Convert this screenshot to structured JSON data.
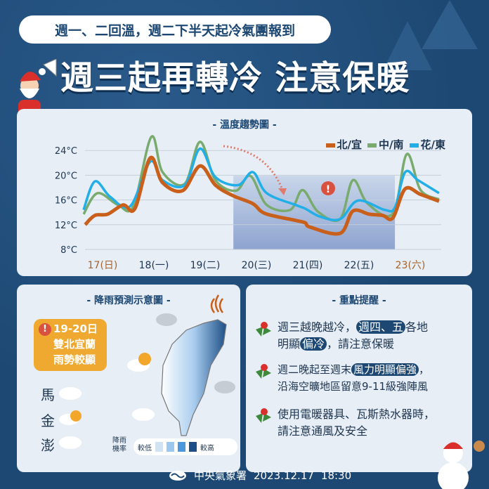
{
  "header": {
    "subtitle": "週一、二回溫，週二下半天起冷氣團報到",
    "title": "週三起再轉冷 注意保暖"
  },
  "chart_data": {
    "type": "line",
    "title": "- 溫度趨勢圖 -",
    "xlabel": "",
    "ylabel": "",
    "yticks": [
      "8°C",
      "12°C",
      "16°C",
      "20°C",
      "24°C"
    ],
    "ylim": [
      8,
      24
    ],
    "categories": [
      "17(日)",
      "18(一)",
      "19(二)",
      "20(三)",
      "21(四)",
      "22(五)",
      "23(六)"
    ],
    "x_unit": "day of month (Dec)",
    "xlim": [
      16.6,
      23.6
    ],
    "highlight_range": [
      19.55,
      22.7
    ],
    "legend_position": "top-right",
    "grid": true,
    "series": [
      {
        "name": "北/宜",
        "color": "#c8601c",
        "points": [
          [
            16.66,
            12
          ],
          [
            16.85,
            13.5
          ],
          [
            17.1,
            13.7
          ],
          [
            17.4,
            15.2
          ],
          [
            17.63,
            14.6
          ],
          [
            17.93,
            22.8
          ],
          [
            18.17,
            18.8
          ],
          [
            18.56,
            17.5
          ],
          [
            18.9,
            21.5
          ],
          [
            19.2,
            18.4
          ],
          [
            19.54,
            16.7
          ],
          [
            19.93,
            15.4
          ],
          [
            20.17,
            13.8
          ],
          [
            20.76,
            12.7
          ],
          [
            20.95,
            12.3
          ],
          [
            21.05,
            11.6
          ],
          [
            21.63,
            10.6
          ],
          [
            21.88,
            14.2
          ],
          [
            22.2,
            13.7
          ],
          [
            22.46,
            13.5
          ],
          [
            22.66,
            13.1
          ],
          [
            22.9,
            17.8
          ],
          [
            23.2,
            16.9
          ],
          [
            23.56,
            15.8
          ]
        ]
      },
      {
        "name": "中/南",
        "color": "#7aab6e",
        "points": [
          [
            16.63,
            13.7
          ],
          [
            16.9,
            17.1
          ],
          [
            17.3,
            15.2
          ],
          [
            17.6,
            15
          ],
          [
            17.95,
            26.2
          ],
          [
            18.17,
            20.5
          ],
          [
            18.6,
            18.6
          ],
          [
            18.9,
            25.4
          ],
          [
            19.2,
            19.2
          ],
          [
            19.6,
            17.5
          ],
          [
            19.88,
            19.9
          ],
          [
            20.2,
            15.2
          ],
          [
            20.66,
            14.4
          ],
          [
            20.9,
            17.6
          ],
          [
            21.2,
            14.1
          ],
          [
            21.63,
            12.9
          ],
          [
            21.88,
            19.2
          ],
          [
            22.17,
            15.4
          ],
          [
            22.66,
            13.8
          ],
          [
            22.93,
            23.4
          ],
          [
            23.2,
            17.6
          ],
          [
            23.56,
            16.1
          ]
        ]
      },
      {
        "name": "花/東",
        "color": "#22aee6",
        "points": [
          [
            16.63,
            14.4
          ],
          [
            16.85,
            19
          ],
          [
            17.15,
            16.5
          ],
          [
            17.54,
            15
          ],
          [
            17.93,
            22.2
          ],
          [
            18.17,
            19.2
          ],
          [
            18.6,
            18.4
          ],
          [
            18.9,
            24.3
          ],
          [
            19.2,
            19.7
          ],
          [
            19.64,
            18.4
          ],
          [
            19.93,
            20.5
          ],
          [
            20.2,
            17.1
          ],
          [
            20.76,
            15.2
          ],
          [
            20.95,
            14.6
          ],
          [
            21.24,
            13.3
          ],
          [
            21.63,
            12.9
          ],
          [
            21.98,
            15.9
          ],
          [
            22.5,
            14.4
          ],
          [
            22.7,
            14.8
          ],
          [
            22.9,
            20.5
          ],
          [
            23.15,
            19.2
          ],
          [
            23.56,
            17.1
          ]
        ]
      }
    ]
  },
  "rain": {
    "title": "- 降雨預測示意圖 -",
    "warning_lines": [
      "19-20日",
      "雙北宜蘭",
      "雨勢較顯"
    ],
    "islands": [
      "馬",
      "金",
      "澎"
    ],
    "legend_label": [
      "降雨",
      "機率"
    ],
    "low": "較低",
    "high": "較高",
    "scale_colors": [
      "#cfe3f5",
      "#9cc8ee",
      "#4b98dc",
      "#1d4f86"
    ]
  },
  "tips": {
    "title": "- 重點提醒 -",
    "items": [
      {
        "a": "週三越晚越冷，",
        "hl1": "週四、五",
        "b": "各地",
        "c": "明顯",
        "hl2": "偏冷",
        "d": "，請注意保暖"
      },
      {
        "a": "週二晚起至週末",
        "hl1": "風力明顯偏強",
        "b": "，",
        "c": "沿海空曠地區留意9-11級強陣風"
      },
      {
        "a": "使用電暖器具、瓦斯熱水器時，",
        "c": "請注意通風及安全"
      }
    ]
  },
  "footer": {
    "agency": "中央氣象署",
    "date": "2023.12.17",
    "time": "18:30"
  }
}
